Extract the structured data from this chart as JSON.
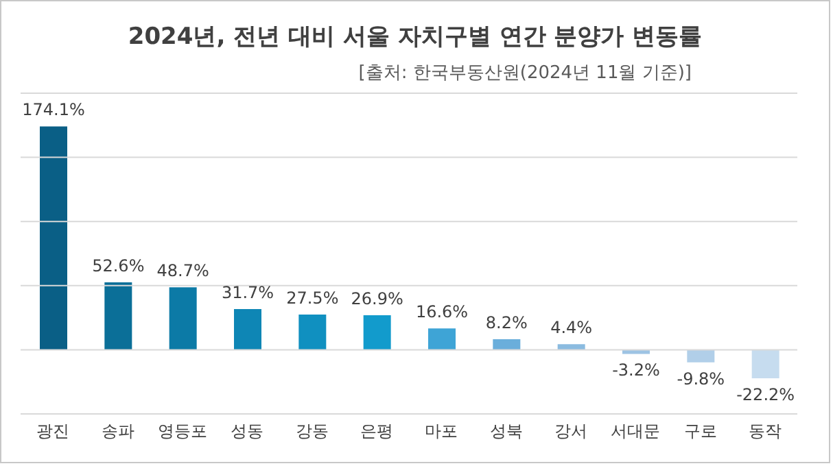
{
  "chart_data": {
    "type": "bar",
    "title": "2024년, 전년 대비 서울 자치구별 연간 분양가 변동률",
    "subtitle": "[출처: 한국부동산원(2024년 11월 기준)]",
    "categories": [
      "광진",
      "송파",
      "영등포",
      "성동",
      "강동",
      "은평",
      "마포",
      "성북",
      "강서",
      "서대문",
      "구로",
      "동작"
    ],
    "values": [
      174.1,
      52.6,
      48.7,
      31.7,
      27.5,
      26.9,
      16.6,
      8.2,
      4.4,
      -3.2,
      -9.8,
      -22.2
    ],
    "value_labels": [
      "174.1%",
      "52.6%",
      "48.7%",
      "31.7%",
      "27.5%",
      "26.9%",
      "16.6%",
      "8.2%",
      "4.4%",
      "-3.2%",
      "-9.8%",
      "-22.2%"
    ],
    "colors": [
      "#0a5f86",
      "#0b6f98",
      "#0c7aa6",
      "#0e86b5",
      "#1090c0",
      "#129bcc",
      "#3ea4d6",
      "#6aaedb",
      "#8bbbe0",
      "#9dc3e4",
      "#b1cfe9",
      "#c6dcef"
    ],
    "ylim": [
      -50,
      200
    ],
    "yticks": [
      {
        "value": -50,
        "label": null
      },
      {
        "value": 0,
        "label": null
      },
      {
        "value": 50,
        "label": null
      },
      {
        "value": 100,
        "label": null
      },
      {
        "value": 150,
        "label": null
      },
      {
        "value": 200,
        "label": null
      }
    ],
    "tick_labels": "x",
    "grid": "y"
  }
}
